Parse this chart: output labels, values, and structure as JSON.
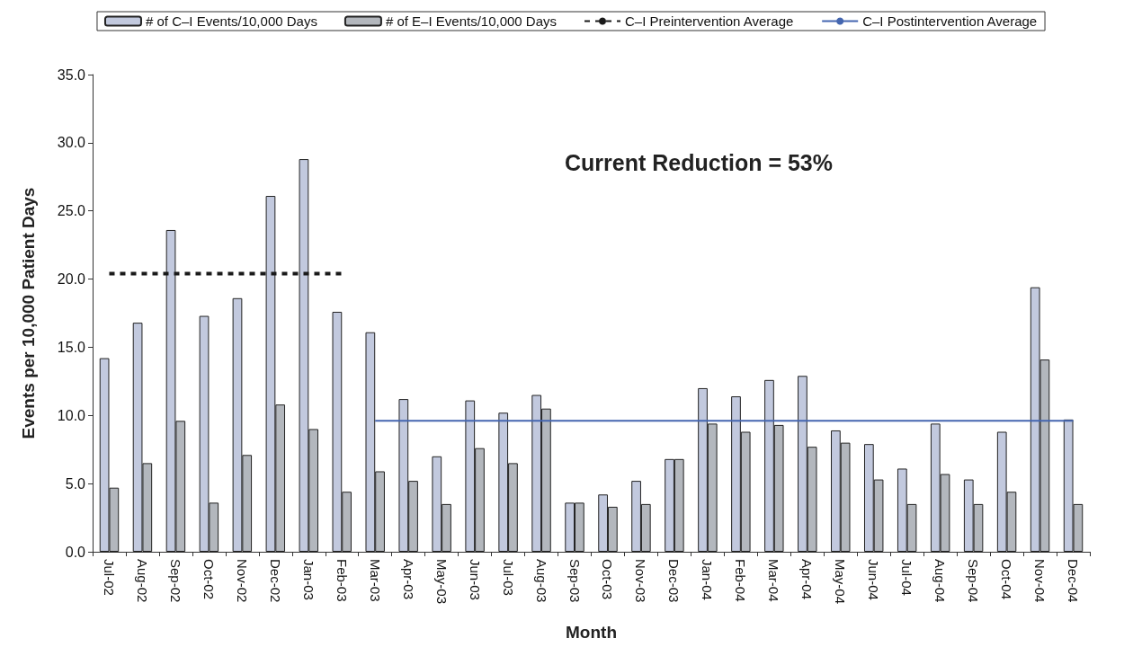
{
  "chart_data": {
    "type": "bar",
    "xlabel": "Month",
    "ylabel": "Events per 10,000 Patient Days",
    "categories": [
      "Jul-02",
      "Aug-02",
      "Sep-02",
      "Oct-02",
      "Nov-02",
      "Dec-02",
      "Jan-03",
      "Feb-03",
      "Mar-03",
      "Apr-03",
      "May-03",
      "Jun-03",
      "Jul-03",
      "Aug-03",
      "Sep-03",
      "Oct-03",
      "Nov-03",
      "Dec-03",
      "Jan-04",
      "Feb-04",
      "Mar-04",
      "Apr-04",
      "May-04",
      "Jun-04",
      "Jul-04",
      "Aug-04",
      "Sep-04",
      "Oct-04",
      "Nov-04",
      "Dec-04"
    ],
    "series": [
      {
        "name": "# of C–I Events/10,000 Days",
        "color": "#c2c9de",
        "values": [
          14.2,
          16.8,
          23.6,
          17.3,
          18.6,
          26.1,
          28.8,
          17.6,
          16.1,
          11.2,
          7.0,
          11.1,
          10.2,
          11.5,
          3.6,
          4.2,
          5.2,
          6.8,
          12.0,
          11.4,
          12.6,
          12.9,
          8.9,
          7.9,
          6.1,
          9.4,
          5.3,
          8.8,
          19.4,
          9.7
        ]
      },
      {
        "name": "# of E–I Events/10,000 Days",
        "color": "#b3b7bd",
        "values": [
          4.7,
          6.5,
          9.6,
          3.6,
          7.1,
          10.8,
          9.0,
          4.4,
          5.9,
          5.2,
          3.5,
          7.6,
          6.5,
          10.5,
          3.6,
          3.3,
          3.5,
          6.8,
          9.4,
          8.8,
          9.3,
          7.7,
          8.0,
          5.3,
          3.5,
          5.7,
          3.5,
          4.4,
          14.1,
          3.5
        ]
      },
      {
        "name": "C–I Preintervention Average",
        "type": "line",
        "line_style": "dashed",
        "color": "#1a1a1a",
        "values": [
          20.4,
          20.4,
          20.4,
          20.4,
          20.4,
          20.4,
          20.4,
          20.4,
          null,
          null,
          null,
          null,
          null,
          null,
          null,
          null,
          null,
          null,
          null,
          null,
          null,
          null,
          null,
          null,
          null,
          null,
          null,
          null,
          null,
          null
        ]
      },
      {
        "name": "C–I Postintervention Average",
        "type": "line",
        "line_style": "solid",
        "color": "#4466b0",
        "values": [
          null,
          null,
          null,
          null,
          null,
          null,
          null,
          null,
          9.6,
          9.6,
          9.6,
          9.6,
          9.6,
          9.6,
          9.6,
          9.6,
          9.6,
          9.6,
          9.6,
          9.6,
          9.6,
          9.6,
          9.6,
          9.6,
          9.6,
          9.6,
          9.6,
          9.6,
          9.6,
          9.6
        ]
      }
    ],
    "ylim": [
      0,
      35
    ],
    "yticks": [
      {
        "value": 0,
        "label": "0.0"
      },
      {
        "value": 5,
        "label": "5.0"
      },
      {
        "value": 10,
        "label": "10.0"
      },
      {
        "value": 15,
        "label": "15.0"
      },
      {
        "value": 20,
        "label": "20.0"
      },
      {
        "value": 25,
        "label": "25.0"
      },
      {
        "value": 30,
        "label": "30.0"
      },
      {
        "value": 35,
        "label": "35.0"
      }
    ],
    "annotations": [
      "Current Reduction = 53%"
    ],
    "legend": "top",
    "grid": false,
    "marker": "none"
  }
}
